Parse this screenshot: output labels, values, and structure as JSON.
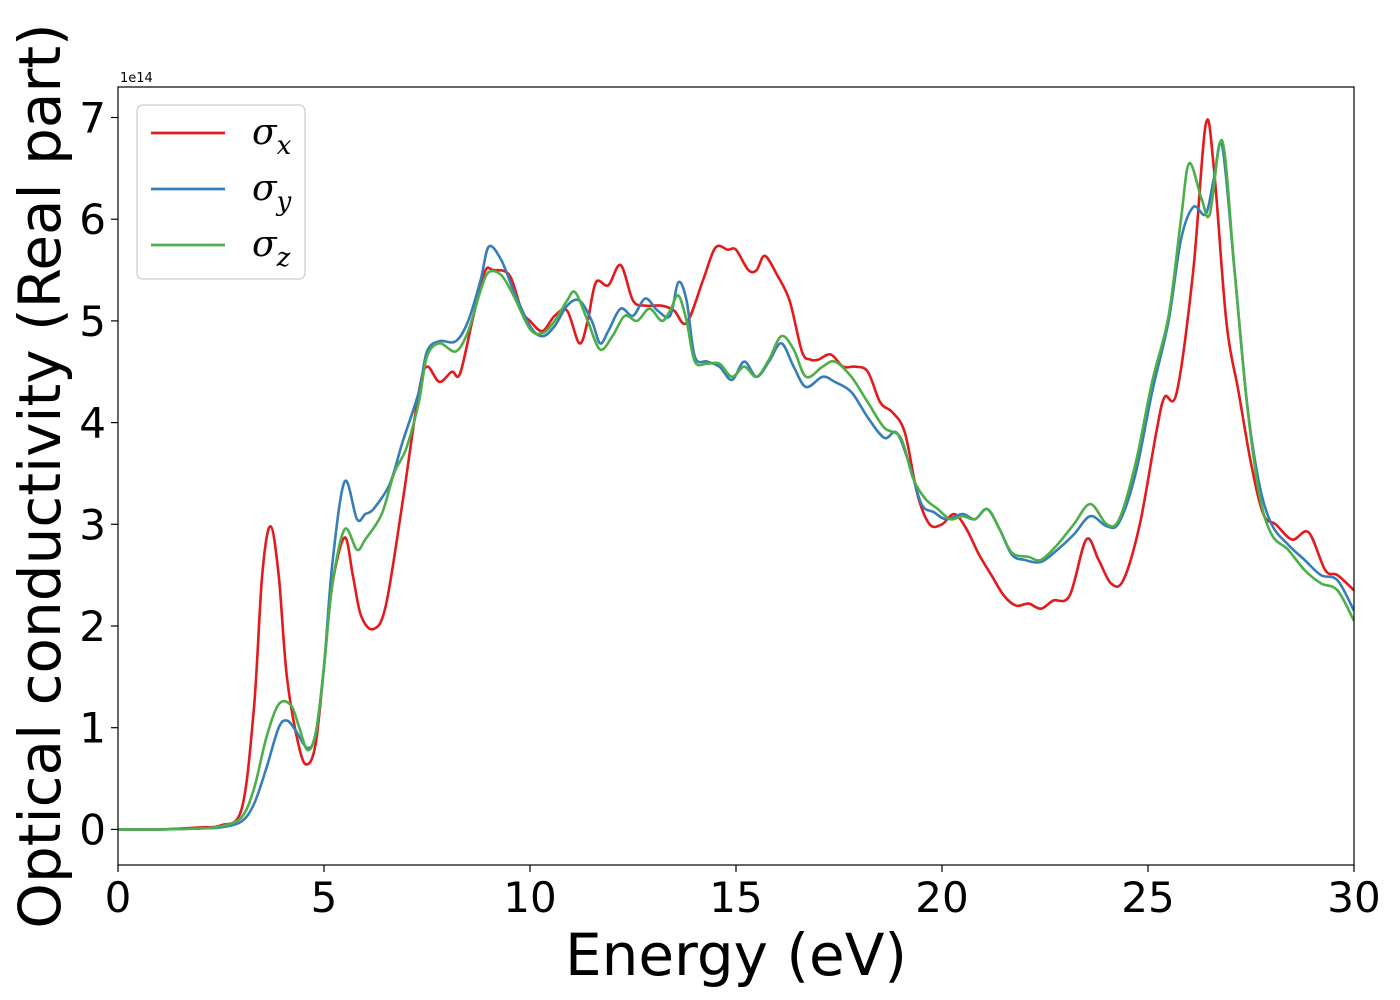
{
  "chart_data": {
    "type": "line",
    "xlabel": "Energy (eV)",
    "ylabel": "Optical conductivity (Real part)",
    "y_offset_text": "1e14",
    "xlim": [
      0,
      30
    ],
    "ylim": [
      -0.35,
      7.3
    ],
    "y_scale_factor": 100000000000000.0,
    "x_ticks": [
      0,
      5,
      10,
      15,
      20,
      25,
      30
    ],
    "x_tick_labels": [
      "0",
      "5",
      "10",
      "15",
      "20",
      "25",
      "30"
    ],
    "y_ticks": [
      0,
      1,
      2,
      3,
      4,
      5,
      6,
      7
    ],
    "y_tick_labels": [
      "0",
      "1",
      "2",
      "3",
      "4",
      "5",
      "6",
      "7"
    ],
    "grid": false,
    "legend_position": "upper-left",
    "series": [
      {
        "name": "σx",
        "legend_base": "σ",
        "legend_sub": "x",
        "color": "#e41a1c",
        "points": [
          [
            0,
            0
          ],
          [
            1,
            0
          ],
          [
            2,
            0.02
          ],
          [
            2.5,
            0.04
          ],
          [
            3,
            0.2
          ],
          [
            3.3,
            1.2
          ],
          [
            3.5,
            2.5
          ],
          [
            3.7,
            2.98
          ],
          [
            3.9,
            2.5
          ],
          [
            4.1,
            1.5
          ],
          [
            4.4,
            0.8
          ],
          [
            4.6,
            0.64
          ],
          [
            4.8,
            0.85
          ],
          [
            5,
            1.6
          ],
          [
            5.2,
            2.4
          ],
          [
            5.5,
            2.87
          ],
          [
            5.7,
            2.5
          ],
          [
            5.9,
            2.1
          ],
          [
            6.2,
            1.97
          ],
          [
            6.5,
            2.2
          ],
          [
            6.9,
            3.2
          ],
          [
            7.3,
            4.3
          ],
          [
            7.5,
            4.55
          ],
          [
            7.8,
            4.4
          ],
          [
            8.1,
            4.5
          ],
          [
            8.3,
            4.48
          ],
          [
            8.6,
            5.0
          ],
          [
            8.9,
            5.48
          ],
          [
            9.1,
            5.5
          ],
          [
            9.5,
            5.45
          ],
          [
            9.8,
            5.1
          ],
          [
            10,
            5.0
          ],
          [
            10.3,
            4.9
          ],
          [
            10.6,
            5.05
          ],
          [
            10.9,
            5.1
          ],
          [
            11.2,
            4.78
          ],
          [
            11.4,
            5.0
          ],
          [
            11.6,
            5.38
          ],
          [
            11.9,
            5.35
          ],
          [
            12.2,
            5.55
          ],
          [
            12.5,
            5.2
          ],
          [
            12.8,
            5.15
          ],
          [
            13.2,
            5.15
          ],
          [
            13.5,
            5.1
          ],
          [
            13.8,
            4.98
          ],
          [
            14.2,
            5.4
          ],
          [
            14.5,
            5.72
          ],
          [
            14.8,
            5.7
          ],
          [
            15,
            5.7
          ],
          [
            15.3,
            5.5
          ],
          [
            15.5,
            5.5
          ],
          [
            15.7,
            5.64
          ],
          [
            16,
            5.45
          ],
          [
            16.3,
            5.2
          ],
          [
            16.6,
            4.7
          ],
          [
            16.8,
            4.62
          ],
          [
            17,
            4.62
          ],
          [
            17.3,
            4.67
          ],
          [
            17.6,
            4.55
          ],
          [
            17.9,
            4.55
          ],
          [
            18.2,
            4.5
          ],
          [
            18.5,
            4.2
          ],
          [
            18.8,
            4.1
          ],
          [
            19.1,
            3.9
          ],
          [
            19.4,
            3.3
          ],
          [
            19.7,
            3.0
          ],
          [
            20,
            3.0
          ],
          [
            20.3,
            3.1
          ],
          [
            20.6,
            2.95
          ],
          [
            20.9,
            2.7
          ],
          [
            21.2,
            2.5
          ],
          [
            21.5,
            2.3
          ],
          [
            21.8,
            2.2
          ],
          [
            22.1,
            2.22
          ],
          [
            22.4,
            2.17
          ],
          [
            22.7,
            2.25
          ],
          [
            23.1,
            2.3
          ],
          [
            23.5,
            2.85
          ],
          [
            23.8,
            2.65
          ],
          [
            24.1,
            2.42
          ],
          [
            24.4,
            2.45
          ],
          [
            24.8,
            3.0
          ],
          [
            25.2,
            3.9
          ],
          [
            25.4,
            4.25
          ],
          [
            25.7,
            4.3
          ],
          [
            26.1,
            5.5
          ],
          [
            26.4,
            6.93
          ],
          [
            26.6,
            6.5
          ],
          [
            26.9,
            5.0
          ],
          [
            27.2,
            4.3
          ],
          [
            27.5,
            3.6
          ],
          [
            27.8,
            3.1
          ],
          [
            28.1,
            3.0
          ],
          [
            28.5,
            2.85
          ],
          [
            28.9,
            2.92
          ],
          [
            29.3,
            2.55
          ],
          [
            29.6,
            2.5
          ],
          [
            30,
            2.35
          ]
        ]
      },
      {
        "name": "σy",
        "legend_base": "σ",
        "legend_sub": "y",
        "color": "#377eb8",
        "points": [
          [
            0,
            0
          ],
          [
            1,
            0
          ],
          [
            2,
            0.01
          ],
          [
            2.5,
            0.02
          ],
          [
            3,
            0.08
          ],
          [
            3.3,
            0.25
          ],
          [
            3.6,
            0.6
          ],
          [
            3.9,
            1.0
          ],
          [
            4.1,
            1.07
          ],
          [
            4.3,
            0.98
          ],
          [
            4.6,
            0.8
          ],
          [
            4.8,
            0.95
          ],
          [
            5,
            1.6
          ],
          [
            5.2,
            2.6
          ],
          [
            5.5,
            3.42
          ],
          [
            5.8,
            3.05
          ],
          [
            6,
            3.1
          ],
          [
            6.2,
            3.15
          ],
          [
            6.6,
            3.4
          ],
          [
            6.9,
            3.8
          ],
          [
            7.3,
            4.3
          ],
          [
            7.5,
            4.7
          ],
          [
            7.8,
            4.8
          ],
          [
            8.2,
            4.8
          ],
          [
            8.5,
            5.0
          ],
          [
            8.8,
            5.4
          ],
          [
            9,
            5.73
          ],
          [
            9.3,
            5.6
          ],
          [
            9.6,
            5.3
          ],
          [
            10,
            4.95
          ],
          [
            10.3,
            4.85
          ],
          [
            10.6,
            4.95
          ],
          [
            10.9,
            5.15
          ],
          [
            11.2,
            5.2
          ],
          [
            11.5,
            5.0
          ],
          [
            11.7,
            4.78
          ],
          [
            11.9,
            4.9
          ],
          [
            12.2,
            5.12
          ],
          [
            12.5,
            5.05
          ],
          [
            12.8,
            5.22
          ],
          [
            13.1,
            5.1
          ],
          [
            13.4,
            5.05
          ],
          [
            13.6,
            5.38
          ],
          [
            13.8,
            5.2
          ],
          [
            14,
            4.65
          ],
          [
            14.3,
            4.6
          ],
          [
            14.6,
            4.55
          ],
          [
            14.9,
            4.42
          ],
          [
            15.2,
            4.6
          ],
          [
            15.5,
            4.45
          ],
          [
            15.8,
            4.6
          ],
          [
            16.1,
            4.78
          ],
          [
            16.4,
            4.55
          ],
          [
            16.7,
            4.35
          ],
          [
            17.1,
            4.45
          ],
          [
            17.4,
            4.4
          ],
          [
            17.8,
            4.3
          ],
          [
            18.2,
            4.05
          ],
          [
            18.6,
            3.85
          ],
          [
            18.9,
            3.9
          ],
          [
            19.2,
            3.6
          ],
          [
            19.5,
            3.2
          ],
          [
            19.8,
            3.12
          ],
          [
            20.1,
            3.05
          ],
          [
            20.5,
            3.1
          ],
          [
            20.8,
            3.05
          ],
          [
            21.1,
            3.15
          ],
          [
            21.4,
            2.95
          ],
          [
            21.7,
            2.7
          ],
          [
            22,
            2.65
          ],
          [
            22.4,
            2.63
          ],
          [
            22.8,
            2.75
          ],
          [
            23.2,
            2.9
          ],
          [
            23.6,
            3.08
          ],
          [
            24,
            2.98
          ],
          [
            24.3,
            3.02
          ],
          [
            24.7,
            3.5
          ],
          [
            25.1,
            4.3
          ],
          [
            25.5,
            5.0
          ],
          [
            25.8,
            5.8
          ],
          [
            26.1,
            6.12
          ],
          [
            26.4,
            6.05
          ],
          [
            26.6,
            6.4
          ],
          [
            26.8,
            6.72
          ],
          [
            27.1,
            5.5
          ],
          [
            27.4,
            4.2
          ],
          [
            27.7,
            3.4
          ],
          [
            28,
            3.0
          ],
          [
            28.4,
            2.8
          ],
          [
            28.8,
            2.65
          ],
          [
            29.2,
            2.5
          ],
          [
            29.6,
            2.45
          ],
          [
            30,
            2.15
          ]
        ]
      },
      {
        "name": "σz",
        "legend_base": "σ",
        "legend_sub": "z",
        "color": "#4daf4a",
        "points": [
          [
            0,
            0
          ],
          [
            1,
            0
          ],
          [
            2,
            0.01
          ],
          [
            2.5,
            0.03
          ],
          [
            3,
            0.12
          ],
          [
            3.3,
            0.4
          ],
          [
            3.6,
            0.9
          ],
          [
            3.9,
            1.23
          ],
          [
            4.2,
            1.22
          ],
          [
            4.4,
            1.0
          ],
          [
            4.6,
            0.78
          ],
          [
            4.8,
            0.95
          ],
          [
            5,
            1.6
          ],
          [
            5.2,
            2.4
          ],
          [
            5.5,
            2.95
          ],
          [
            5.8,
            2.75
          ],
          [
            6,
            2.85
          ],
          [
            6.4,
            3.1
          ],
          [
            6.7,
            3.5
          ],
          [
            7,
            3.75
          ],
          [
            7.3,
            4.2
          ],
          [
            7.5,
            4.65
          ],
          [
            7.8,
            4.78
          ],
          [
            8.2,
            4.7
          ],
          [
            8.5,
            4.9
          ],
          [
            8.8,
            5.3
          ],
          [
            9,
            5.48
          ],
          [
            9.3,
            5.45
          ],
          [
            9.6,
            5.25
          ],
          [
            10,
            4.92
          ],
          [
            10.3,
            4.88
          ],
          [
            10.6,
            5.0
          ],
          [
            10.9,
            5.2
          ],
          [
            11.1,
            5.28
          ],
          [
            11.4,
            5.0
          ],
          [
            11.7,
            4.72
          ],
          [
            12,
            4.85
          ],
          [
            12.3,
            5.05
          ],
          [
            12.6,
            5.0
          ],
          [
            12.9,
            5.12
          ],
          [
            13.2,
            5.0
          ],
          [
            13.4,
            5.1
          ],
          [
            13.6,
            5.25
          ],
          [
            13.8,
            5.0
          ],
          [
            14,
            4.6
          ],
          [
            14.3,
            4.58
          ],
          [
            14.6,
            4.58
          ],
          [
            14.9,
            4.45
          ],
          [
            15.2,
            4.55
          ],
          [
            15.5,
            4.45
          ],
          [
            15.8,
            4.62
          ],
          [
            16.1,
            4.85
          ],
          [
            16.4,
            4.72
          ],
          [
            16.7,
            4.45
          ],
          [
            17.1,
            4.55
          ],
          [
            17.4,
            4.6
          ],
          [
            17.8,
            4.45
          ],
          [
            18.2,
            4.2
          ],
          [
            18.6,
            3.95
          ],
          [
            19,
            3.85
          ],
          [
            19.3,
            3.45
          ],
          [
            19.6,
            3.25
          ],
          [
            19.9,
            3.15
          ],
          [
            20.2,
            3.05
          ],
          [
            20.5,
            3.08
          ],
          [
            20.8,
            3.05
          ],
          [
            21.1,
            3.15
          ],
          [
            21.4,
            2.95
          ],
          [
            21.7,
            2.72
          ],
          [
            22.1,
            2.68
          ],
          [
            22.4,
            2.65
          ],
          [
            22.8,
            2.8
          ],
          [
            23.2,
            3.0
          ],
          [
            23.6,
            3.2
          ],
          [
            24,
            3.0
          ],
          [
            24.3,
            3.05
          ],
          [
            24.7,
            3.6
          ],
          [
            25.1,
            4.4
          ],
          [
            25.5,
            5.05
          ],
          [
            25.8,
            6.0
          ],
          [
            26,
            6.55
          ],
          [
            26.3,
            6.2
          ],
          [
            26.5,
            6.05
          ],
          [
            26.8,
            6.77
          ],
          [
            27.1,
            5.5
          ],
          [
            27.4,
            4.2
          ],
          [
            27.7,
            3.3
          ],
          [
            28,
            2.9
          ],
          [
            28.4,
            2.75
          ],
          [
            28.8,
            2.55
          ],
          [
            29.2,
            2.42
          ],
          [
            29.6,
            2.35
          ],
          [
            30,
            2.05
          ]
        ]
      }
    ]
  }
}
